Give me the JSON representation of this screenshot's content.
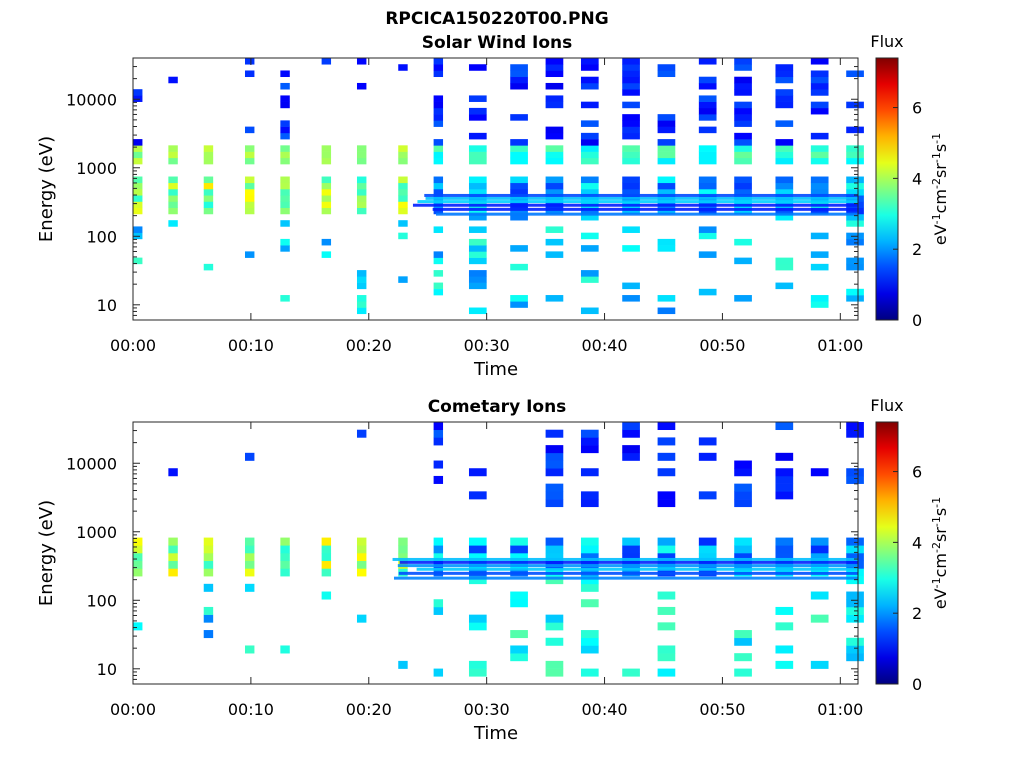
{
  "figure_title": "RPCICA150220T00.PNG",
  "colors": {
    "axis": "#262626",
    "background": "#ffffff"
  },
  "colorbar": {
    "title": "Flux",
    "ticks": [
      "0",
      "2",
      "4",
      "6"
    ],
    "range": [
      0,
      7.4
    ],
    "unit_parts": [
      "eV",
      "-1",
      "cm",
      "-2",
      "sr",
      "-1",
      "s",
      "-1"
    ],
    "colormap": "jet"
  },
  "chart_data": [
    {
      "type": "heatmap",
      "title": "Solar Wind Ions",
      "xlabel": "Time",
      "ylabel": "Energy (eV)",
      "x_ticks": [
        "00:00",
        "00:10",
        "00:20",
        "00:30",
        "00:40",
        "00:50",
        "01:00"
      ],
      "y_ticks": [
        "10",
        "100",
        "1000",
        "10000"
      ],
      "y_scale": "log",
      "ylim": [
        6,
        40000
      ],
      "xlim_minutes": [
        0,
        61.5
      ]
    },
    {
      "type": "heatmap",
      "title": "Cometary Ions",
      "xlabel": "Time",
      "ylabel": "Energy (eV)",
      "x_ticks": [
        "00:00",
        "00:10",
        "00:20",
        "00:30",
        "00:40",
        "00:50",
        "01:00"
      ],
      "y_ticks": [
        "10",
        "100",
        "1000",
        "10000"
      ],
      "y_scale": "log",
      "ylim": [
        6,
        40000
      ],
      "xlim_minutes": [
        0,
        61.5
      ]
    }
  ]
}
